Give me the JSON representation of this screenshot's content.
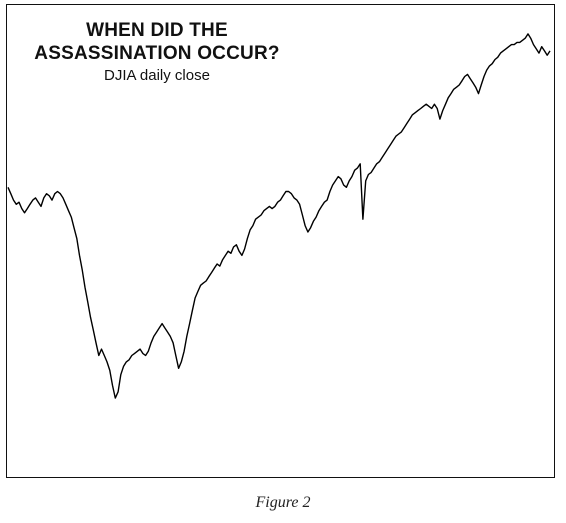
{
  "chart_data": {
    "type": "line",
    "title_lines": [
      "WHEN DID THE",
      "ASSASSINATION OCCUR?"
    ],
    "subtitle": "DJIA daily close",
    "xlabel": "",
    "ylabel": "",
    "grid": false,
    "axes_visible": false,
    "ylim": [
      0,
      100
    ],
    "series": [
      {
        "color": "#000000",
        "values": [
          60.5,
          59.0,
          57.5,
          56.5,
          57.0,
          55.5,
          54.5,
          55.5,
          56.5,
          57.5,
          58.0,
          57.0,
          56.0,
          58.0,
          59.0,
          58.5,
          57.5,
          59.0,
          59.5,
          59.0,
          58.0,
          56.5,
          55.0,
          53.5,
          51.0,
          48.5,
          44.5,
          41.0,
          37.0,
          33.5,
          30.0,
          27.0,
          24.0,
          21.0,
          22.5,
          21.0,
          19.5,
          17.5,
          14.0,
          11.0,
          12.5,
          16.5,
          18.5,
          19.5,
          20.0,
          21.0,
          21.5,
          22.0,
          22.5,
          21.5,
          21.0,
          22.0,
          24.0,
          25.5,
          26.5,
          27.5,
          28.5,
          27.5,
          26.5,
          25.5,
          24.0,
          21.0,
          18.0,
          19.5,
          22.0,
          25.5,
          28.5,
          31.5,
          34.5,
          36.0,
          37.5,
          38.0,
          38.5,
          39.5,
          40.5,
          41.5,
          42.5,
          42.0,
          43.5,
          44.5,
          45.5,
          45.0,
          46.5,
          47.0,
          45.5,
          44.5,
          46.0,
          48.5,
          50.5,
          51.5,
          53.0,
          53.5,
          54.0,
          55.0,
          55.5,
          56.0,
          55.5,
          56.0,
          57.0,
          57.5,
          58.5,
          59.5,
          59.5,
          59.0,
          58.0,
          57.5,
          56.5,
          54.0,
          51.5,
          50.0,
          51.0,
          52.5,
          53.5,
          55.0,
          56.0,
          57.0,
          57.5,
          59.5,
          61.0,
          62.0,
          63.0,
          62.5,
          61.0,
          60.5,
          62.0,
          63.0,
          64.5,
          65.0,
          66.0,
          53.0,
          62.0,
          63.5,
          64.0,
          65.0,
          66.0,
          66.5,
          67.5,
          68.5,
          69.5,
          70.5,
          71.5,
          72.5,
          73.0,
          73.5,
          74.5,
          75.5,
          76.5,
          77.5,
          78.0,
          78.5,
          79.0,
          79.5,
          80.0,
          79.5,
          79.0,
          80.0,
          79.0,
          76.5,
          78.5,
          80.0,
          81.5,
          82.5,
          83.5,
          84.0,
          84.5,
          85.5,
          86.5,
          87.0,
          86.0,
          85.0,
          84.0,
          82.5,
          84.5,
          86.5,
          88.0,
          89.0,
          89.5,
          90.5,
          91.0,
          92.0,
          92.5,
          93.0,
          93.5,
          94.0,
          94.0,
          94.5,
          94.5,
          95.0,
          95.5,
          96.5,
          95.5,
          94.0,
          93.0,
          92.0,
          93.5,
          92.5,
          91.5,
          92.5
        ]
      }
    ]
  },
  "caption": "Figure 2"
}
